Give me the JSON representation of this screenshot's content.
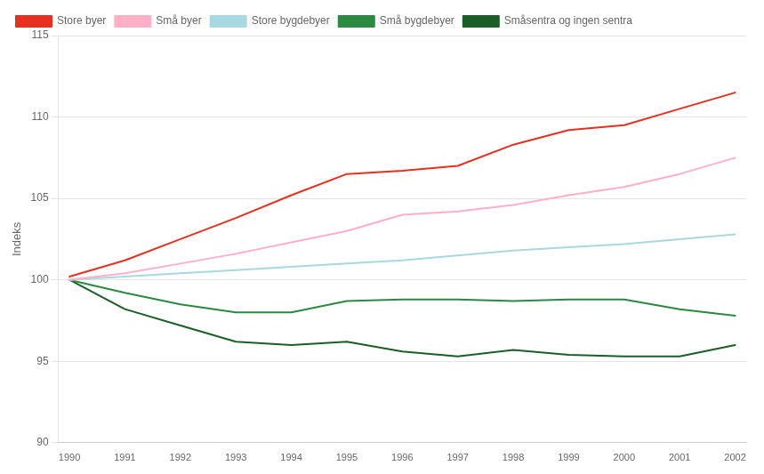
{
  "chart_data": {
    "type": "line",
    "x": [
      1990,
      1991,
      1992,
      1993,
      1994,
      1995,
      1996,
      1997,
      1998,
      1999,
      2000,
      2001,
      2002
    ],
    "series": [
      {
        "name": "Store byer",
        "color": "#e83020",
        "values": [
          100.2,
          101.2,
          102.5,
          103.8,
          105.2,
          106.5,
          106.7,
          107.0,
          108.3,
          109.2,
          109.5,
          110.5,
          111.5
        ]
      },
      {
        "name": "Små byer",
        "color": "#ffb0c8",
        "values": [
          100.0,
          100.4,
          101.0,
          101.6,
          102.3,
          103.0,
          104.0,
          104.2,
          104.6,
          105.2,
          105.7,
          106.5,
          107.5
        ]
      },
      {
        "name": "Store bygdebyer",
        "color": "#a8d8e0",
        "values": [
          100.0,
          100.2,
          100.4,
          100.6,
          100.8,
          101.0,
          101.2,
          101.5,
          101.8,
          102.0,
          102.2,
          102.5,
          102.8
        ]
      },
      {
        "name": "Små bygdebyer",
        "color": "#2a8a40",
        "values": [
          100.0,
          99.2,
          98.5,
          98.0,
          98.0,
          98.7,
          98.8,
          98.8,
          98.7,
          98.8,
          98.8,
          98.2,
          97.8
        ]
      },
      {
        "name": "Småsentra og ingen sentra",
        "color": "#1a5e28",
        "values": [
          100.0,
          98.2,
          97.2,
          96.2,
          96.0,
          96.2,
          95.6,
          95.3,
          95.7,
          95.4,
          95.3,
          95.3,
          96.0
        ]
      }
    ],
    "ylabel": "Indeks",
    "xlim": [
      1989.8,
      2002.2
    ],
    "xticks": [
      1990,
      1991,
      1992,
      1993,
      1994,
      1995,
      1996,
      1997,
      1998,
      1999,
      2000,
      2001,
      2002
    ],
    "ylim": [
      90,
      115
    ],
    "yticks": [
      90,
      95,
      100,
      105,
      110,
      115
    ],
    "grid": true,
    "legend": "upper left"
  }
}
